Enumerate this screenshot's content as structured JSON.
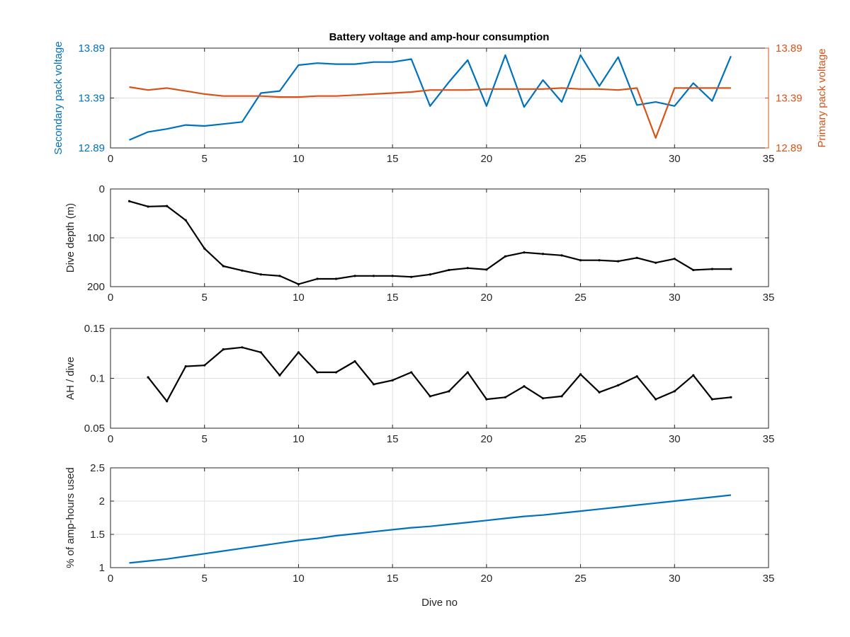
{
  "figure": {
    "title": "Battery voltage and amp-hour consumption",
    "colors": {
      "secondary": "#0072BD",
      "primary": "#D95319",
      "depth": "#000000",
      "ah": "#000000",
      "pct": "#0072BD",
      "axes": "#262626",
      "grid": "#dfdfdf"
    }
  },
  "chart_data": [
    {
      "type": "line",
      "title": "Battery voltage and amp-hour consumption",
      "xlabel": "",
      "ylabel": "Secondary pack voltage",
      "ylabel_right": "Primary pack voltage",
      "xlim": [
        0,
        35
      ],
      "xticks": [
        0,
        5,
        10,
        15,
        20,
        25,
        30,
        35
      ],
      "ylim": [
        12.89,
        13.89
      ],
      "yticks": [
        "12.89",
        "13.39",
        "13.89"
      ],
      "ylim_right": [
        12.89,
        13.89
      ],
      "yticks_right": [
        "12.89",
        "13.39",
        "13.89"
      ],
      "grid": true,
      "series": [
        {
          "name": "Secondary pack voltage",
          "axis": "left",
          "color": "#0072BD",
          "x": [
            1,
            2,
            3,
            4,
            5,
            6,
            7,
            8,
            9,
            10,
            11,
            12,
            13,
            14,
            15,
            16,
            17,
            18,
            19,
            20,
            21,
            22,
            23,
            24,
            25,
            26,
            27,
            28,
            29,
            30,
            31,
            32,
            33
          ],
          "y": [
            12.97,
            13.05,
            13.08,
            13.12,
            13.11,
            13.13,
            13.15,
            13.44,
            13.46,
            13.72,
            13.74,
            13.73,
            13.73,
            13.75,
            13.75,
            13.78,
            13.31,
            13.55,
            13.77,
            13.31,
            13.82,
            13.3,
            13.57,
            13.35,
            13.82,
            13.51,
            13.8,
            13.32,
            13.35,
            13.31,
            13.54,
            13.36,
            13.81
          ]
        },
        {
          "name": "Primary pack voltage",
          "axis": "right",
          "color": "#D95319",
          "x": [
            1,
            2,
            3,
            4,
            5,
            6,
            7,
            8,
            9,
            10,
            11,
            12,
            13,
            14,
            15,
            16,
            17,
            18,
            19,
            20,
            21,
            22,
            23,
            24,
            25,
            26,
            27,
            28,
            29,
            30,
            31,
            32,
            33
          ],
          "y": [
            13.5,
            13.47,
            13.49,
            13.46,
            13.43,
            13.41,
            13.41,
            13.41,
            13.4,
            13.4,
            13.41,
            13.41,
            13.42,
            13.43,
            13.44,
            13.45,
            13.47,
            13.47,
            13.47,
            13.48,
            13.48,
            13.48,
            13.48,
            13.49,
            13.48,
            13.48,
            13.47,
            13.49,
            12.99,
            13.49,
            13.49,
            13.49,
            13.49
          ]
        }
      ]
    },
    {
      "type": "line",
      "xlabel": "",
      "ylabel": "Dive depth (m)",
      "xlim": [
        0,
        35
      ],
      "xticks": [
        0,
        5,
        10,
        15,
        20,
        25,
        30,
        35
      ],
      "ylim": [
        0,
        200
      ],
      "yticks": [
        "0",
        "100",
        "200"
      ],
      "y_reversed": true,
      "grid": true,
      "series": [
        {
          "color": "#000000",
          "x": [
            1,
            2,
            3,
            4,
            5,
            6,
            7,
            8,
            9,
            10,
            11,
            12,
            13,
            14,
            15,
            16,
            17,
            18,
            19,
            20,
            21,
            22,
            23,
            24,
            25,
            26,
            27,
            28,
            29,
            30,
            31,
            32,
            33
          ],
          "y": [
            25,
            36,
            35,
            64,
            122,
            158,
            167,
            175,
            178,
            195,
            184,
            184,
            178,
            178,
            178,
            180,
            175,
            166,
            162,
            165,
            138,
            130,
            133,
            136,
            146,
            146,
            148,
            141,
            151,
            143,
            166,
            164,
            164
          ]
        }
      ]
    },
    {
      "type": "line",
      "xlabel": "",
      "ylabel": "AH / dive",
      "xlim": [
        0,
        35
      ],
      "xticks": [
        0,
        5,
        10,
        15,
        20,
        25,
        30,
        35
      ],
      "ylim": [
        0.05,
        0.15
      ],
      "yticks": [
        "0.05",
        "0.1",
        "0.15"
      ],
      "grid": true,
      "series": [
        {
          "color": "#000000",
          "x": [
            2,
            3,
            4,
            5,
            6,
            7,
            8,
            9,
            10,
            11,
            12,
            13,
            14,
            15,
            16,
            17,
            18,
            19,
            20,
            21,
            22,
            23,
            24,
            25,
            26,
            27,
            28,
            29,
            30,
            31,
            32,
            33
          ],
          "y": [
            0.101,
            0.077,
            0.112,
            0.113,
            0.129,
            0.131,
            0.126,
            0.103,
            0.126,
            0.106,
            0.106,
            0.117,
            0.094,
            0.098,
            0.106,
            0.082,
            0.087,
            0.106,
            0.079,
            0.081,
            0.092,
            0.08,
            0.082,
            0.104,
            0.086,
            0.093,
            0.102,
            0.079,
            0.087,
            0.103,
            0.079,
            0.081
          ]
        }
      ]
    },
    {
      "type": "line",
      "xlabel": "Dive no",
      "ylabel": "% of amp-hours used",
      "xlim": [
        0,
        35
      ],
      "xticks": [
        0,
        5,
        10,
        15,
        20,
        25,
        30,
        35
      ],
      "ylim": [
        1,
        2.5
      ],
      "yticks": [
        "1",
        "1.5",
        "2",
        "2.5"
      ],
      "grid": true,
      "series": [
        {
          "color": "#0072BD",
          "x": [
            1,
            2,
            3,
            4,
            5,
            6,
            7,
            8,
            9,
            10,
            11,
            12,
            13,
            14,
            15,
            16,
            17,
            18,
            19,
            20,
            21,
            22,
            23,
            24,
            25,
            26,
            27,
            28,
            29,
            30,
            31,
            32,
            33
          ],
          "y": [
            1.07,
            1.1,
            1.13,
            1.17,
            1.21,
            1.25,
            1.29,
            1.33,
            1.37,
            1.41,
            1.44,
            1.48,
            1.51,
            1.54,
            1.57,
            1.6,
            1.62,
            1.65,
            1.68,
            1.71,
            1.74,
            1.77,
            1.79,
            1.82,
            1.85,
            1.88,
            1.91,
            1.94,
            1.97,
            2.0,
            2.03,
            2.06,
            2.09
          ]
        }
      ]
    }
  ]
}
